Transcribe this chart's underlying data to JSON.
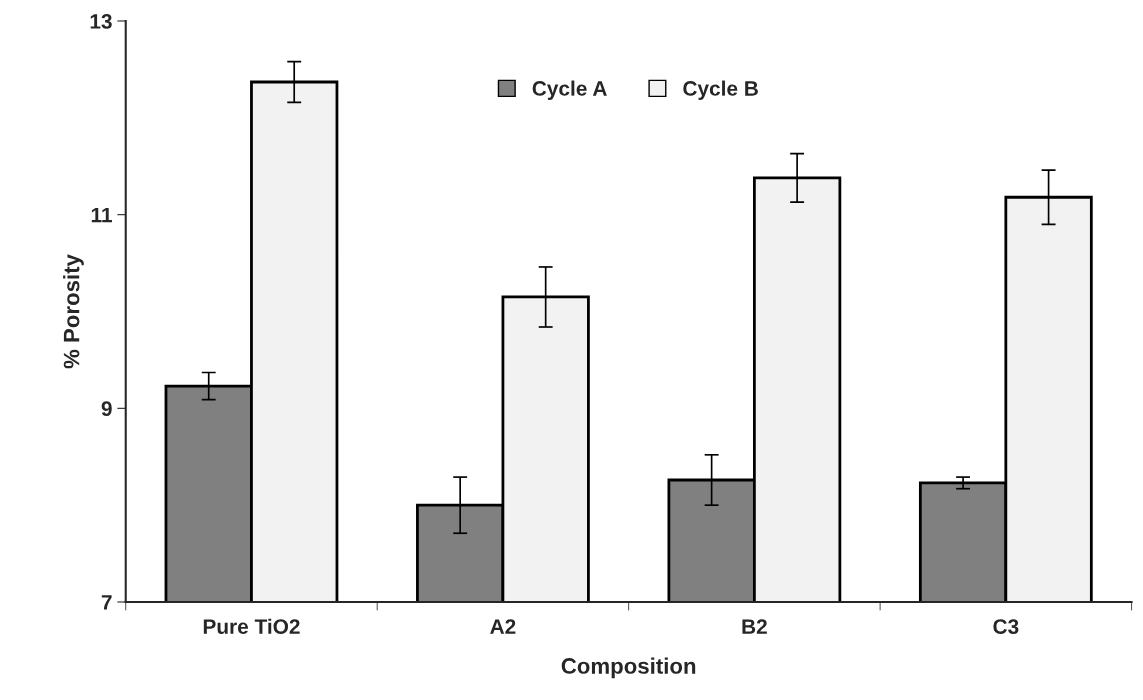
{
  "chart_data": {
    "type": "bar",
    "xlabel": "Composition",
    "ylabel": "% Porosity",
    "categories": [
      "Pure TiO2",
      "A2",
      "B2",
      "C3"
    ],
    "series": [
      {
        "name": "Cycle A",
        "color": "#808080",
        "values": [
          9.23,
          8.0,
          8.26,
          8.23
        ],
        "errors": [
          0.14,
          0.29,
          0.26,
          0.06
        ]
      },
      {
        "name": "Cycle B",
        "color": "#f2f2f2",
        "values": [
          12.37,
          10.15,
          11.38,
          11.18
        ],
        "errors": [
          0.21,
          0.31,
          0.25,
          0.28
        ]
      }
    ],
    "ylim": [
      7,
      13
    ],
    "yticks": [
      7,
      9,
      11,
      13
    ],
    "grid": false,
    "legend": "top"
  }
}
